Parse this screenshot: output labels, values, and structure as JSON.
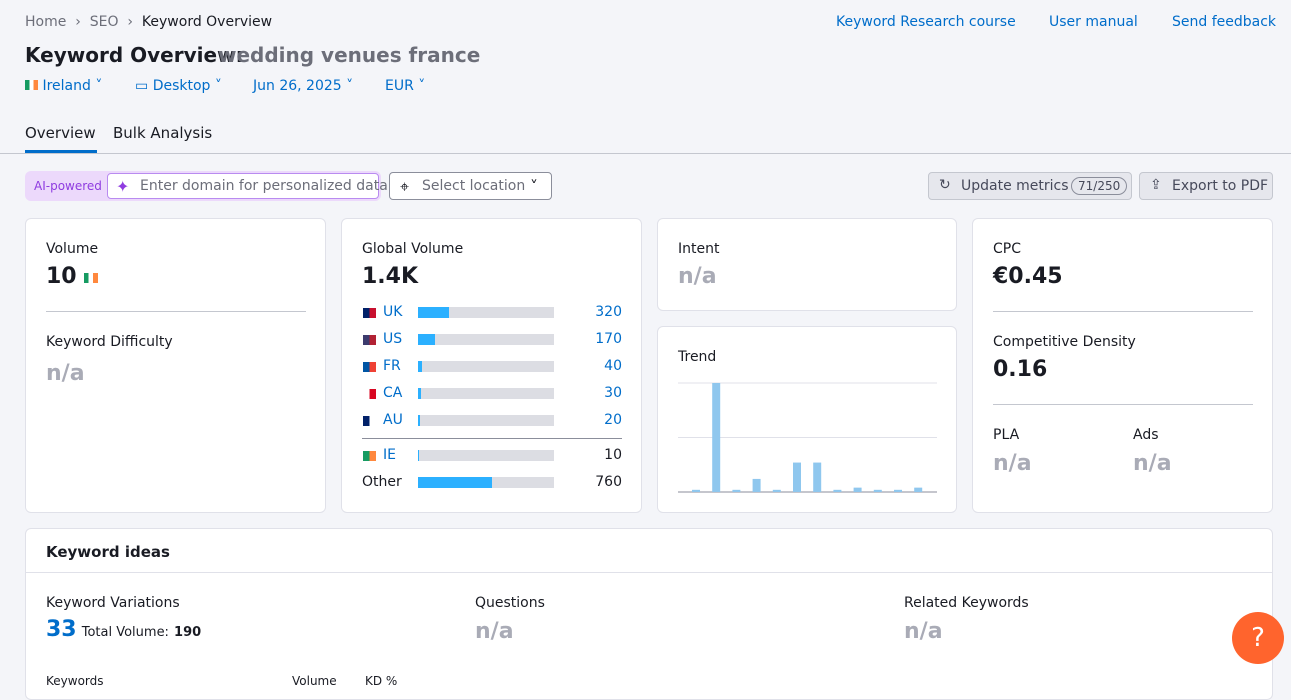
{
  "breadcrumbs": [
    "Home",
    "SEO",
    "Keyword Overview"
  ],
  "header_links": [
    "Keyword Research course",
    "User manual",
    "Send feedback"
  ],
  "title": "Keyword Overview:",
  "keyword": "wedding venues france",
  "filters": [
    "Ireland",
    "Desktop",
    "Jun 26, 2025",
    "EUR"
  ],
  "tabs": [
    "Overview",
    "Bulk Analysis"
  ],
  "toolbar": {
    "ai_badge": "AI-powered",
    "domain_placeholder": "Enter domain for personalized data",
    "location_placeholder": "Select location",
    "update_button": "Update metrics",
    "update_count": "71/250",
    "export_button": "Export to PDF"
  },
  "volume": {
    "label": "Volume",
    "value": "10"
  },
  "keyword_difficulty": {
    "label": "Keyword Difficulty",
    "value": "n/a"
  },
  "global_volume": {
    "label": "Global Volume",
    "total": {
      "value": 1400,
      "label": "1.4K"
    },
    "bar_color": "#2bb0ff",
    "countries": [
      {
        "code": "UK",
        "value": 320,
        "flag": [
          "#012169",
          "#c8102e"
        ]
      },
      {
        "code": "US",
        "value": 170,
        "flag": [
          "#3c3b6e",
          "#b22234"
        ]
      },
      {
        "code": "FR",
        "value": 40,
        "flag": [
          "#0055a4",
          "#ef4135"
        ]
      },
      {
        "code": "CA",
        "value": 30,
        "flag": [
          "#ffffff",
          "#d80621"
        ]
      },
      {
        "code": "AU",
        "value": 20,
        "flag": [
          "#012169",
          "#ffffff"
        ]
      }
    ],
    "local": [
      {
        "code": "IE",
        "value": 10,
        "flag": [
          "#169b62",
          "#ff883e"
        ]
      },
      {
        "code": "Other",
        "value": 760
      }
    ]
  },
  "intent": {
    "label": "Intent",
    "value": "n/a"
  },
  "trend": {
    "label": "Trend",
    "values": [
      2,
      100,
      2,
      12,
      2,
      27,
      27,
      2,
      4,
      2,
      2,
      4
    ],
    "ylim": [
      0,
      100
    ],
    "yticks": [
      0,
      50,
      100
    ],
    "color": "#8fc7ee"
  },
  "cpc": {
    "label": "CPC",
    "value": "€0.45"
  },
  "competitive_density": {
    "label": "Competitive Density",
    "value": "0.16"
  },
  "pla": {
    "label": "PLA",
    "value": "n/a"
  },
  "ads": {
    "label": "Ads",
    "value": "n/a"
  },
  "keyword_ideas": {
    "title": "Keyword ideas",
    "variations": {
      "label": "Keyword Variations",
      "count": "33",
      "total_label": "Total Volume:",
      "total": "190"
    },
    "questions": {
      "label": "Questions",
      "value": "n/a"
    },
    "related": {
      "label": "Related Keywords",
      "value": "n/a"
    },
    "table_headers": [
      "Keywords",
      "Volume",
      "KD %"
    ]
  },
  "help_button": "?"
}
